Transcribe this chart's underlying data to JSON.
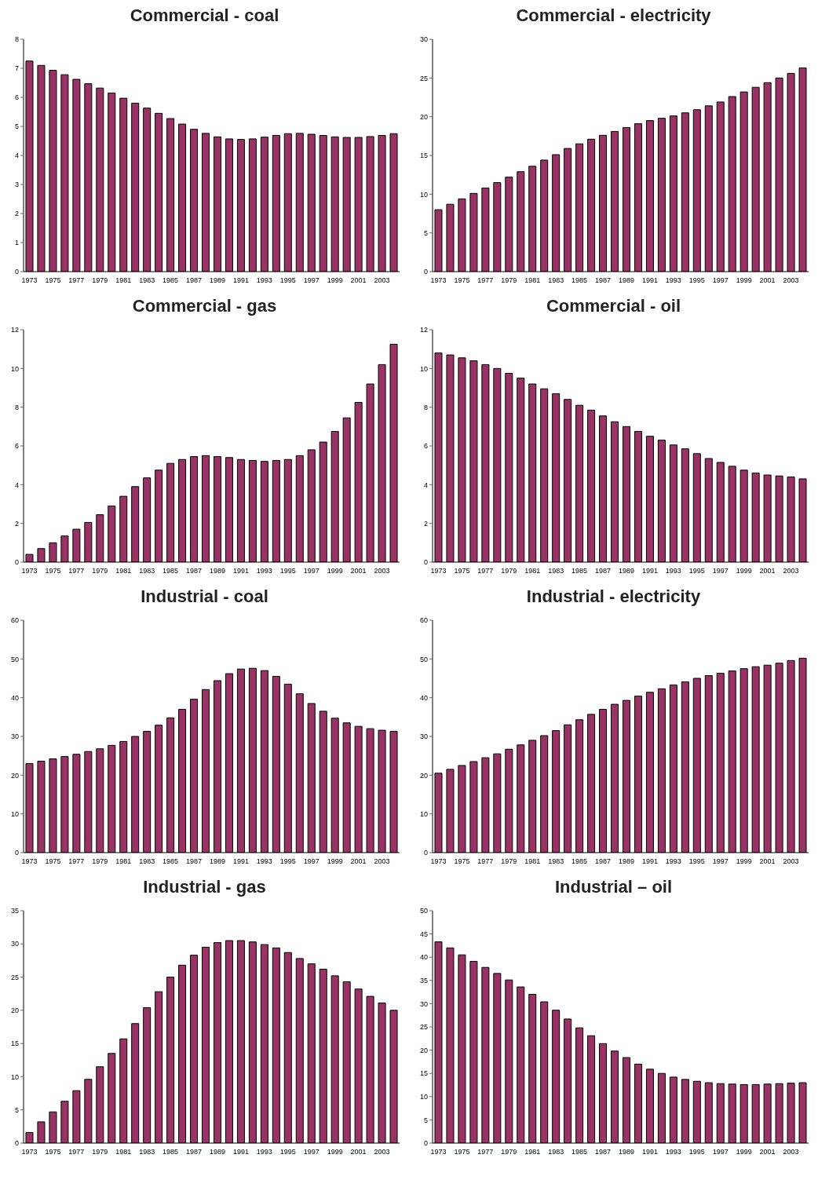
{
  "chart_data": [
    {
      "type": "bar",
      "title": "Commercial - coal",
      "categories": [
        "1973",
        null,
        "1975",
        null,
        "1977",
        null,
        "1979",
        null,
        "1981",
        null,
        "1983",
        null,
        "1985",
        null,
        "1987",
        null,
        "1989",
        null,
        "1991",
        null,
        "1993",
        null,
        "1995",
        null,
        "1997",
        null,
        "1999",
        null,
        "2001",
        null,
        "2003",
        null
      ],
      "values": [
        7.25,
        7.1,
        6.93,
        6.78,
        6.62,
        6.47,
        6.32,
        6.15,
        5.97,
        5.8,
        5.63,
        5.45,
        5.27,
        5.08,
        4.9,
        4.76,
        4.64,
        4.57,
        4.55,
        4.57,
        4.63,
        4.69,
        4.75,
        4.76,
        4.73,
        4.69,
        4.64,
        4.62,
        4.62,
        4.65,
        4.69,
        4.75
      ],
      "color": "#993366",
      "ylim": [
        0,
        8
      ],
      "yticks": [
        0,
        1,
        2,
        3,
        4,
        5,
        6,
        7,
        8
      ],
      "grid": false,
      "legend": false
    },
    {
      "type": "bar",
      "title": "Commercial - electricity",
      "categories": [
        "1973",
        null,
        "1975",
        null,
        "1977",
        null,
        "1979",
        null,
        "1981",
        null,
        "1983",
        null,
        "1985",
        null,
        "1987",
        null,
        "1989",
        null,
        "1991",
        null,
        "1993",
        null,
        "1995",
        null,
        "1997",
        null,
        "1999",
        null,
        "2001",
        null,
        "2003",
        null
      ],
      "values": [
        8.0,
        8.7,
        9.4,
        10.1,
        10.8,
        11.5,
        12.2,
        12.9,
        13.6,
        14.4,
        15.1,
        15.9,
        16.5,
        17.1,
        17.6,
        18.1,
        18.6,
        19.1,
        19.5,
        19.8,
        20.1,
        20.5,
        20.9,
        21.4,
        21.9,
        22.6,
        23.2,
        23.8,
        24.4,
        25.0,
        25.6,
        26.3
      ],
      "color": "#993366",
      "ylim": [
        0,
        30
      ],
      "yticks": [
        0,
        5,
        10,
        15,
        20,
        25,
        30
      ],
      "grid": false,
      "legend": false
    },
    {
      "type": "bar",
      "title": "Commercial - gas",
      "categories": [
        "1973",
        null,
        "1975",
        null,
        "1977",
        null,
        "1979",
        null,
        "1981",
        null,
        "1983",
        null,
        "1985",
        null,
        "1987",
        null,
        "1989",
        null,
        "1991",
        null,
        "1993",
        null,
        "1995",
        null,
        "1997",
        null,
        "1999",
        null,
        "2001",
        null,
        "2003",
        null
      ],
      "values": [
        0.4,
        0.7,
        1.0,
        1.35,
        1.7,
        2.05,
        2.45,
        2.9,
        3.4,
        3.9,
        4.35,
        4.75,
        5.1,
        5.3,
        5.45,
        5.5,
        5.45,
        5.4,
        5.3,
        5.25,
        5.2,
        5.25,
        5.3,
        5.5,
        5.8,
        6.2,
        6.75,
        7.45,
        8.25,
        9.2,
        10.2,
        11.25
      ],
      "color": "#993366",
      "ylim": [
        0,
        12
      ],
      "yticks": [
        0,
        2,
        4,
        6,
        8,
        10,
        12
      ],
      "grid": false,
      "legend": false
    },
    {
      "type": "bar",
      "title": "Commercial - oil",
      "categories": [
        "1973",
        null,
        "1975",
        null,
        "1977",
        null,
        "1979",
        null,
        "1981",
        null,
        "1983",
        null,
        "1985",
        null,
        "1987",
        null,
        "1989",
        null,
        "1991",
        null,
        "1993",
        null,
        "1995",
        null,
        "1997",
        null,
        "1999",
        null,
        "2001",
        null,
        "2003",
        null
      ],
      "values": [
        10.8,
        10.7,
        10.55,
        10.4,
        10.2,
        10.0,
        9.75,
        9.5,
        9.2,
        8.95,
        8.7,
        8.4,
        8.1,
        7.85,
        7.55,
        7.25,
        7.0,
        6.75,
        6.5,
        6.3,
        6.05,
        5.85,
        5.6,
        5.35,
        5.15,
        4.95,
        4.75,
        4.6,
        4.5,
        4.45,
        4.4,
        4.3
      ],
      "color": "#993366",
      "ylim": [
        0,
        12
      ],
      "yticks": [
        0,
        2,
        4,
        6,
        8,
        10,
        12
      ],
      "grid": false,
      "legend": false
    },
    {
      "type": "bar",
      "title": "Industrial - coal",
      "categories": [
        "1973",
        null,
        "1975",
        null,
        "1977",
        null,
        "1979",
        null,
        "1981",
        null,
        "1983",
        null,
        "1985",
        null,
        "1987",
        null,
        "1989",
        null,
        "1991",
        null,
        "1993",
        null,
        "1995",
        null,
        "1997",
        null,
        "1999",
        null,
        "2001",
        null,
        "2003",
        null
      ],
      "values": [
        23,
        23.6,
        24.2,
        24.8,
        25.4,
        26.1,
        26.8,
        27.7,
        28.7,
        30,
        31.3,
        32.9,
        34.8,
        37,
        39.6,
        42.1,
        44.4,
        46.2,
        47.4,
        47.6,
        47,
        45.5,
        43.5,
        41,
        38.5,
        36.5,
        34.7,
        33.5,
        32.6,
        32,
        31.6,
        31.3
      ],
      "color": "#993366",
      "ylim": [
        0,
        60
      ],
      "yticks": [
        0,
        10,
        20,
        30,
        40,
        50,
        60
      ],
      "grid": false,
      "legend": false
    },
    {
      "type": "bar",
      "title": "Industrial - electricity",
      "categories": [
        "1973",
        null,
        "1975",
        null,
        "1977",
        null,
        "1979",
        null,
        "1981",
        null,
        "1983",
        null,
        "1985",
        null,
        "1987",
        null,
        "1989",
        null,
        "1991",
        null,
        "1993",
        null,
        "1995",
        null,
        "1997",
        null,
        "1999",
        null,
        "2001",
        null,
        "2003",
        null
      ],
      "values": [
        20.5,
        21.5,
        22.5,
        23.5,
        24.5,
        25.5,
        26.7,
        27.8,
        29,
        30.2,
        31.5,
        33,
        34.3,
        35.7,
        37,
        38.3,
        39.3,
        40.4,
        41.4,
        42.3,
        43.3,
        44.1,
        45,
        45.7,
        46.3,
        46.9,
        47.5,
        48,
        48.4,
        48.9,
        49.6,
        50.2
      ],
      "color": "#993366",
      "ylim": [
        0,
        60
      ],
      "yticks": [
        0,
        10,
        20,
        30,
        40,
        50,
        60
      ],
      "grid": false,
      "legend": false
    },
    {
      "type": "bar",
      "title": "Industrial - gas",
      "categories": [
        "1973",
        null,
        "1975",
        null,
        "1977",
        null,
        "1979",
        null,
        "1981",
        null,
        "1983",
        null,
        "1985",
        null,
        "1987",
        null,
        "1989",
        null,
        "1991",
        null,
        "1993",
        null,
        "1995",
        null,
        "1997",
        null,
        "1999",
        null,
        "2001",
        null,
        "2003",
        null
      ],
      "values": [
        1.6,
        3.2,
        4.7,
        6.3,
        7.9,
        9.6,
        11.5,
        13.5,
        15.7,
        18,
        20.4,
        22.8,
        25,
        26.8,
        28.3,
        29.5,
        30.2,
        30.5,
        30.5,
        30.3,
        29.9,
        29.4,
        28.7,
        27.8,
        27,
        26.2,
        25.2,
        24.3,
        23.2,
        22.1,
        21.1,
        20
      ],
      "color": "#993366",
      "ylim": [
        0,
        35
      ],
      "yticks": [
        0,
        5,
        10,
        15,
        20,
        25,
        30,
        35
      ],
      "grid": false,
      "legend": false
    },
    {
      "type": "bar",
      "title": "Industrial – oil",
      "categories": [
        "1973",
        null,
        "1975",
        null,
        "1977",
        null,
        "1979",
        null,
        "1981",
        null,
        "1983",
        null,
        "1985",
        null,
        "1987",
        null,
        "1989",
        null,
        "1991",
        null,
        "1993",
        null,
        "1995",
        null,
        "1997",
        null,
        "1999",
        null,
        "2001",
        null,
        "2003",
        null
      ],
      "values": [
        43.3,
        42,
        40.5,
        39.1,
        37.8,
        36.5,
        35.1,
        33.6,
        32,
        30.4,
        28.6,
        26.7,
        24.8,
        23.1,
        21.4,
        19.8,
        18.4,
        17,
        15.9,
        15,
        14.2,
        13.7,
        13.3,
        13,
        12.8,
        12.7,
        12.6,
        12.6,
        12.7,
        12.8,
        12.9,
        13
      ],
      "color": "#993366",
      "ylim": [
        0,
        50
      ],
      "yticks": [
        0,
        5,
        10,
        15,
        20,
        25,
        30,
        35,
        40,
        45,
        50
      ],
      "grid": false,
      "legend": false
    }
  ]
}
